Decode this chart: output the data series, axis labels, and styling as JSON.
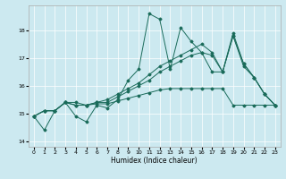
{
  "title": "",
  "xlabel": "Humidex (Indice chaleur)",
  "xlim": [
    -0.5,
    23.5
  ],
  "ylim": [
    13.8,
    18.9
  ],
  "yticks": [
    14,
    15,
    16,
    17,
    18
  ],
  "xticks": [
    0,
    1,
    2,
    3,
    4,
    5,
    6,
    7,
    8,
    9,
    10,
    11,
    12,
    13,
    14,
    15,
    16,
    17,
    18,
    19,
    20,
    21,
    22,
    23
  ],
  "bg_color": "#cce9f0",
  "line_color": "#1a6b5a",
  "grid_color": "#ffffff",
  "lines": [
    [
      14.9,
      14.4,
      15.1,
      15.4,
      14.9,
      14.7,
      15.3,
      15.2,
      15.5,
      16.2,
      16.6,
      18.6,
      18.4,
      16.6,
      18.1,
      17.6,
      17.2,
      17.1,
      16.5,
      17.9,
      16.8,
      16.3,
      15.7,
      15.3
    ],
    [
      14.9,
      15.1,
      15.1,
      15.4,
      15.4,
      15.3,
      15.4,
      15.5,
      15.7,
      15.9,
      16.1,
      16.4,
      16.7,
      16.9,
      17.1,
      17.3,
      17.5,
      17.2,
      16.5,
      17.8,
      16.8,
      16.3,
      15.7,
      15.3
    ],
    [
      14.9,
      15.1,
      15.1,
      15.4,
      15.3,
      15.3,
      15.4,
      15.4,
      15.6,
      15.8,
      16.0,
      16.2,
      16.5,
      16.7,
      16.9,
      17.1,
      17.2,
      16.5,
      16.5,
      17.8,
      16.7,
      16.3,
      15.7,
      15.3
    ],
    [
      14.9,
      15.1,
      15.1,
      15.4,
      15.3,
      15.3,
      15.35,
      15.35,
      15.45,
      15.55,
      15.65,
      15.75,
      15.85,
      15.9,
      15.9,
      15.9,
      15.9,
      15.9,
      15.9,
      15.3,
      15.3,
      15.3,
      15.3,
      15.3
    ]
  ]
}
